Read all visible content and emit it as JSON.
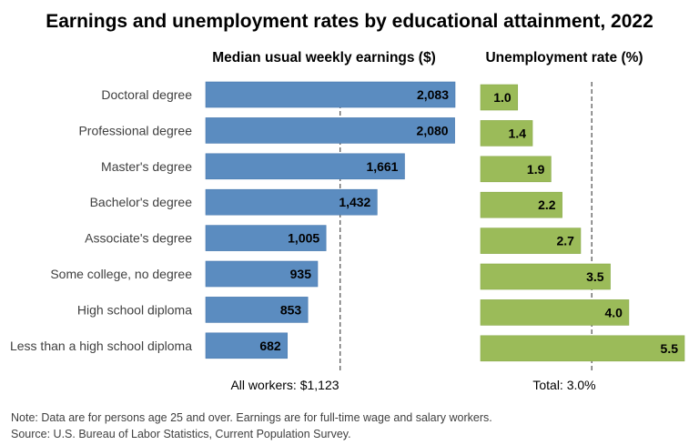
{
  "chart_data": {
    "title": "Earnings and unemployment rates by educational attainment, 2022",
    "categories": [
      "Doctoral degree",
      "Professional degree",
      "Master's degree",
      "Bachelor's degree",
      "Associate's degree",
      "Some college, no degree",
      "High school diploma",
      "Less than a high school diploma"
    ],
    "panels": [
      {
        "type": "bar",
        "orientation": "horizontal",
        "title": "Median usual weekly earnings ($)",
        "values": [
          2083,
          2080,
          1661,
          1432,
          1005,
          935,
          853,
          682
        ],
        "labels": [
          "2,083",
          "2,080",
          "1,661",
          "1,432",
          "1,005",
          "935",
          "853",
          "682"
        ],
        "reference_value": 1123,
        "reference_label": "All workers: $1,123",
        "color": "#5b8cc0",
        "xlim": [
          0,
          2083
        ]
      },
      {
        "type": "bar",
        "orientation": "horizontal",
        "title": "Unemployment rate (%)",
        "values": [
          1.0,
          1.4,
          1.9,
          2.2,
          2.7,
          3.5,
          4.0,
          5.5
        ],
        "labels": [
          "1.0",
          "1.4",
          "1.9",
          "2.2",
          "2.7",
          "3.5",
          "4.0",
          "5.5"
        ],
        "reference_value": 3.0,
        "reference_label": "Total: 3.0%",
        "color": "#9bbb59",
        "xlim": [
          0,
          5.5
        ]
      }
    ],
    "notes": [
      "Note: Data are for persons age 25 and over. Earnings are for full-time wage and salary workers.",
      "Source: U.S. Bureau of Labor Statistics, Current Population Survey."
    ]
  }
}
